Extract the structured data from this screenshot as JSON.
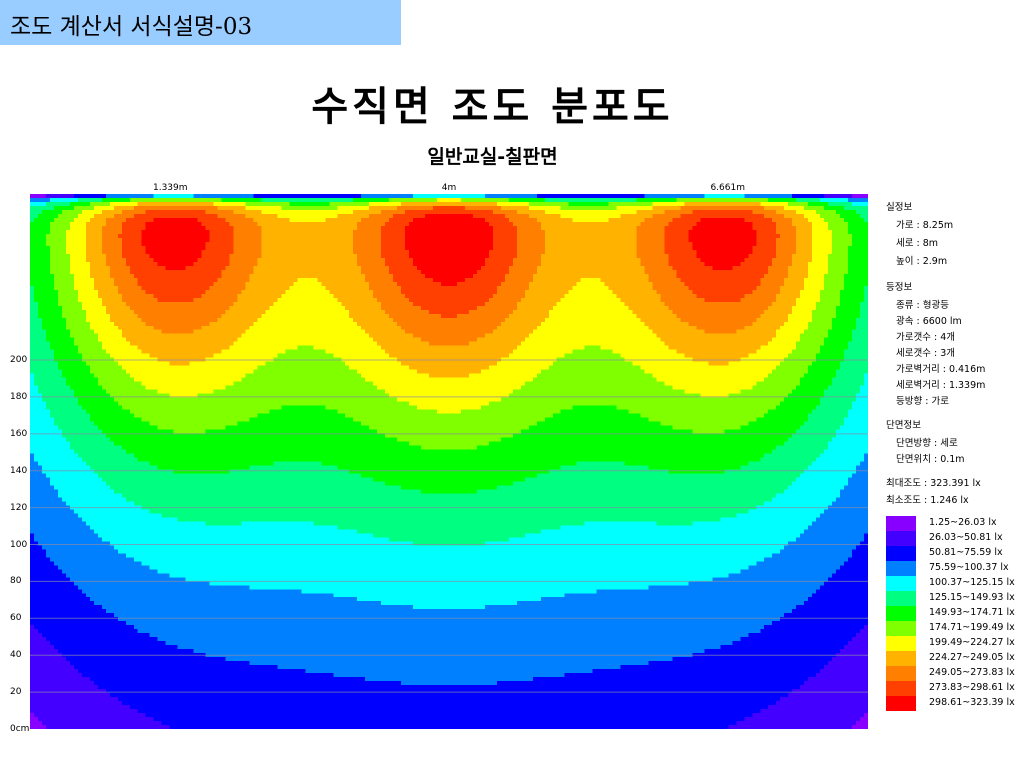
{
  "header": {
    "title": "조도 계산서 서식설명-03"
  },
  "page_title": "수직면 조도 분포도",
  "page_subtitle": "일반교실-칠판면",
  "info": {
    "room_heading": "실정보",
    "room_width": "가로 : 8.25m",
    "room_depth": "세로 : 8m",
    "room_height": "높이 : 2.9m",
    "lamp_heading": "등정보",
    "lamp_type": "종류 : 형광등",
    "lamp_flux": "광속 : 6600 lm",
    "lamp_cols": "가로갯수 : 4개",
    "lamp_rows": "세로갯수 : 3개",
    "lamp_wall_x": "가로벽거리 : 0.416m",
    "lamp_wall_y": "세로벽거리 : 1.339m",
    "lamp_direction": "등방향 : 가로",
    "section_heading": "단면정보",
    "section_direction": "단면방향 : 세로",
    "section_position": "단면위치 : 0.1m",
    "max_illum": "최대조도 : 323.391 lx",
    "min_illum": "최소조도 : 1.246 lx"
  },
  "chart_data": {
    "type": "heatmap",
    "title": "수직면 조도 분포도",
    "subtitle": "일반교실-칠판면",
    "x_ticks": [
      {
        "value": 1.339,
        "label": "1.339m"
      },
      {
        "value": 4,
        "label": "4m"
      },
      {
        "value": 6.661,
        "label": "6.661m"
      }
    ],
    "xlim": [
      0,
      8
    ],
    "y_ticks": [
      {
        "value": 0,
        "label": "0cm"
      },
      {
        "value": 20,
        "label": "20"
      },
      {
        "value": 40,
        "label": "40"
      },
      {
        "value": 60,
        "label": "60"
      },
      {
        "value": 80,
        "label": "80"
      },
      {
        "value": 100,
        "label": "100"
      },
      {
        "value": 120,
        "label": "120"
      },
      {
        "value": 140,
        "label": "140"
      },
      {
        "value": 160,
        "label": "160"
      },
      {
        "value": 180,
        "label": "180"
      },
      {
        "value": 200,
        "label": "200"
      }
    ],
    "ylim": [
      0,
      290
    ],
    "grid": true,
    "value_range": [
      1.246,
      323.391
    ],
    "peaks": [
      {
        "x": 1.339,
        "y": 220,
        "value": 300
      },
      {
        "x": 4,
        "y": 215,
        "value": 323.391
      },
      {
        "x": 6.661,
        "y": 220,
        "value": 300
      }
    ],
    "legend_position": "right",
    "legend": [
      {
        "label": "1.25~26.03 lx",
        "min": 1.25,
        "max": 26.03,
        "color": "#8800ff"
      },
      {
        "label": "26.03~50.81 lx",
        "min": 26.03,
        "max": 50.81,
        "color": "#4400ff"
      },
      {
        "label": "50.81~75.59 lx",
        "min": 50.81,
        "max": 75.59,
        "color": "#0000ff"
      },
      {
        "label": "75.59~100.37 lx",
        "min": 75.59,
        "max": 100.37,
        "color": "#0080ff"
      },
      {
        "label": "100.37~125.15 lx",
        "min": 100.37,
        "max": 125.15,
        "color": "#00ffff"
      },
      {
        "label": "125.15~149.93 lx",
        "min": 125.15,
        "max": 149.93,
        "color": "#00ff80"
      },
      {
        "label": "149.93~174.71 lx",
        "min": 149.93,
        "max": 174.71,
        "color": "#00ff00"
      },
      {
        "label": "174.71~199.49 lx",
        "min": 174.71,
        "max": 199.49,
        "color": "#80ff00"
      },
      {
        "label": "199.49~224.27 lx",
        "min": 199.49,
        "max": 224.27,
        "color": "#ffff00"
      },
      {
        "label": "224.27~249.05 lx",
        "min": 224.27,
        "max": 249.05,
        "color": "#ffb300"
      },
      {
        "label": "249.05~273.83 lx",
        "min": 249.05,
        "max": 273.83,
        "color": "#ff8000"
      },
      {
        "label": "273.83~298.61 lx",
        "min": 273.83,
        "max": 298.61,
        "color": "#ff4000"
      },
      {
        "label": "298.61~323.39 lx",
        "min": 298.61,
        "max": 323.39,
        "color": "#ff0000"
      }
    ]
  }
}
